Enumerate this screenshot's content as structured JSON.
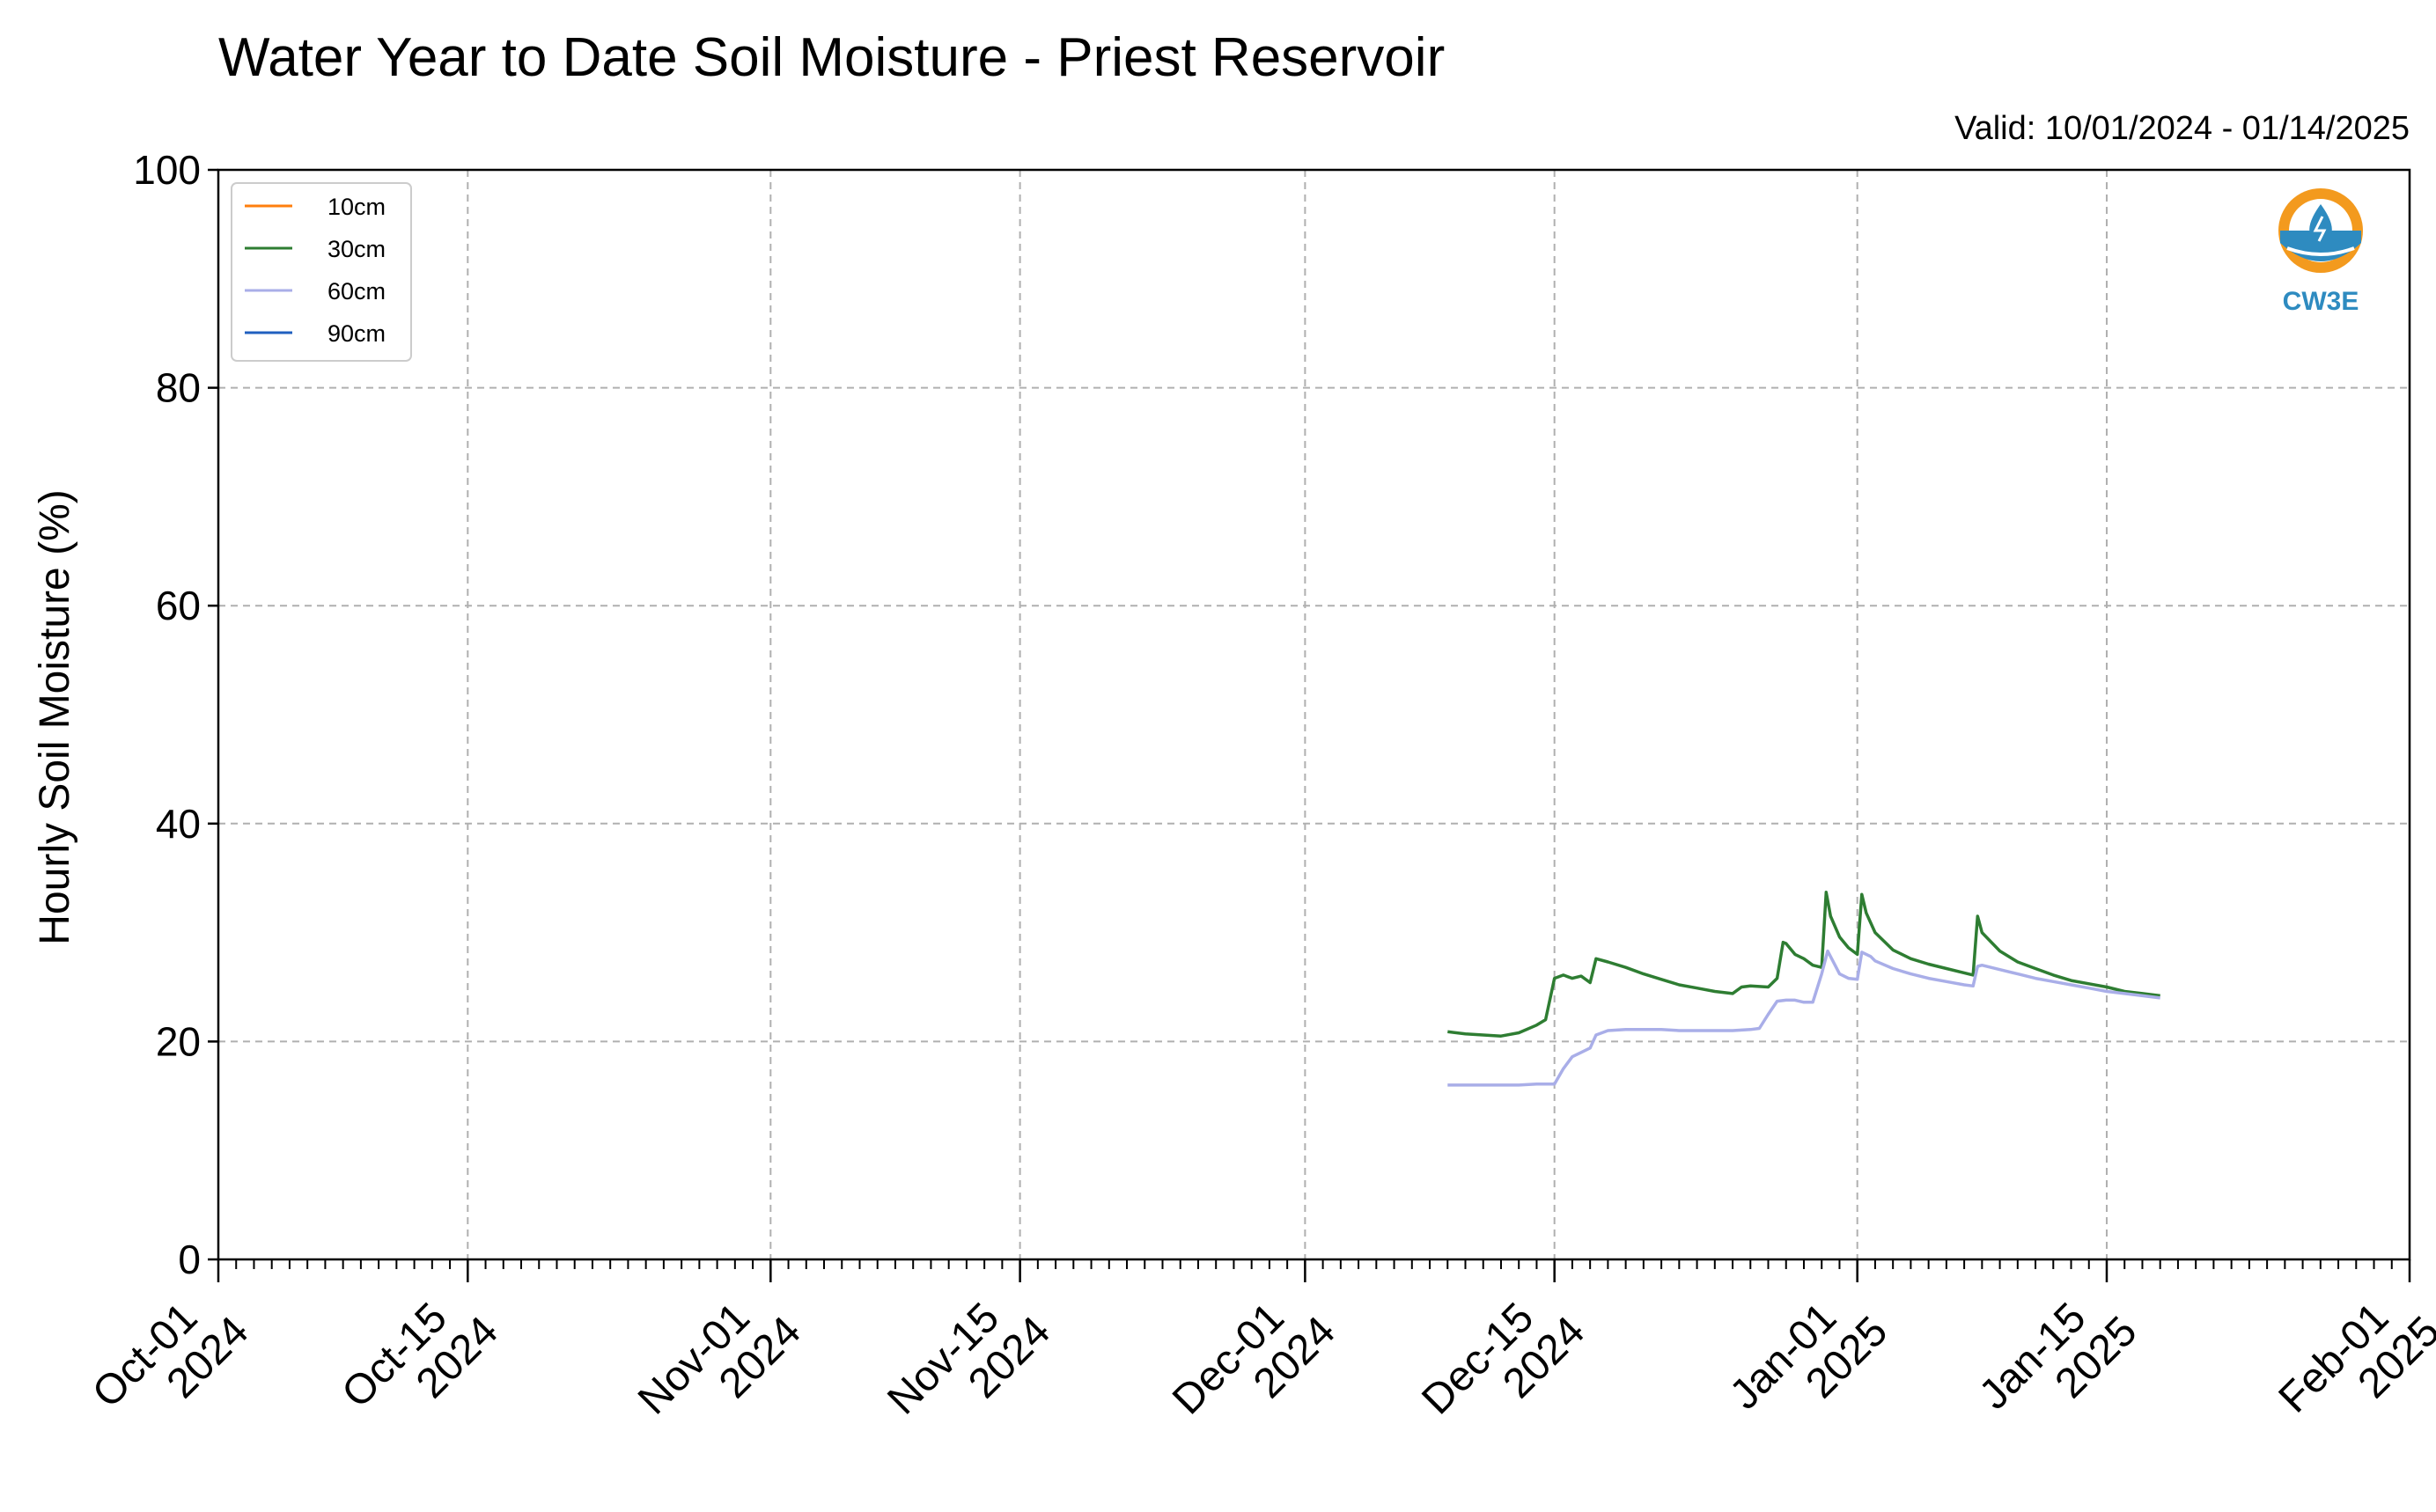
{
  "chart_data": {
    "type": "line",
    "title": "Water Year to Date Soil Moisture - Priest Reservoir",
    "subtitle": "Valid: 10/01/2024 - 01/14/2025",
    "ylabel": "Hourly Soil Moisture (%)",
    "xlabel": "",
    "ylim": [
      0,
      100
    ],
    "xlim": [
      "2024-10-01",
      "2025-02-01"
    ],
    "y_ticks": [
      "0",
      "20",
      "40",
      "60",
      "80",
      "100"
    ],
    "x_ticks": [
      {
        "date": "2024-10-01",
        "line1": "Oct-01",
        "line2": "2024"
      },
      {
        "date": "2024-10-15",
        "line1": "Oct-15",
        "line2": "2024"
      },
      {
        "date": "2024-11-01",
        "line1": "Nov-01",
        "line2": "2024"
      },
      {
        "date": "2024-11-15",
        "line1": "Nov-15",
        "line2": "2024"
      },
      {
        "date": "2024-12-01",
        "line1": "Dec-01",
        "line2": "2024"
      },
      {
        "date": "2024-12-15",
        "line1": "Dec-15",
        "line2": "2024"
      },
      {
        "date": "2025-01-01",
        "line1": "Jan-01",
        "line2": "2025"
      },
      {
        "date": "2025-01-15",
        "line1": "Jan-15",
        "line2": "2025"
      },
      {
        "date": "2025-02-01",
        "line1": "Feb-01",
        "line2": "2025"
      }
    ],
    "grid": true,
    "legend_position": "top-left",
    "series": [
      {
        "name": "10cm",
        "color": "#ff7f0e",
        "points": []
      },
      {
        "name": "30cm",
        "color": "#2e7d32",
        "points": [
          [
            "2024-12-09",
            20.9
          ],
          [
            "2024-12-10",
            20.7
          ],
          [
            "2024-12-11",
            20.6
          ],
          [
            "2024-12-12",
            20.5
          ],
          [
            "2024-12-13",
            20.8
          ],
          [
            "2024-12-14",
            21.5
          ],
          [
            "2024-12-14T12",
            22.0
          ],
          [
            "2024-12-15",
            25.8
          ],
          [
            "2024-12-15T12",
            26.1
          ],
          [
            "2024-12-16",
            25.8
          ],
          [
            "2024-12-16T12",
            26.0
          ],
          [
            "2024-12-17",
            25.4
          ],
          [
            "2024-12-17T08",
            27.6
          ],
          [
            "2024-12-18",
            27.3
          ],
          [
            "2024-12-19",
            26.8
          ],
          [
            "2024-12-20",
            26.2
          ],
          [
            "2024-12-21",
            25.7
          ],
          [
            "2024-12-22",
            25.2
          ],
          [
            "2024-12-23",
            24.9
          ],
          [
            "2024-12-24",
            24.6
          ],
          [
            "2024-12-25",
            24.4
          ],
          [
            "2024-12-25T12",
            25.0
          ],
          [
            "2024-12-26",
            25.1
          ],
          [
            "2024-12-27",
            25.0
          ],
          [
            "2024-12-27T12",
            25.8
          ],
          [
            "2024-12-27T20",
            29.1
          ],
          [
            "2024-12-28",
            29.0
          ],
          [
            "2024-12-28T12",
            28.0
          ],
          [
            "2024-12-29",
            27.6
          ],
          [
            "2024-12-29T12",
            27.0
          ],
          [
            "2024-12-30",
            26.8
          ],
          [
            "2024-12-30T06",
            33.7
          ],
          [
            "2024-12-30T12",
            31.5
          ],
          [
            "2024-12-31",
            29.6
          ],
          [
            "2024-12-31T12",
            28.6
          ],
          [
            "2025-01-01",
            28.0
          ],
          [
            "2025-01-01T06",
            33.5
          ],
          [
            "2025-01-01T12",
            31.8
          ],
          [
            "2025-01-02",
            30.0
          ],
          [
            "2025-01-03",
            28.4
          ],
          [
            "2025-01-04",
            27.6
          ],
          [
            "2025-01-05",
            27.1
          ],
          [
            "2025-01-06",
            26.7
          ],
          [
            "2025-01-07",
            26.3
          ],
          [
            "2025-01-07T12",
            26.1
          ],
          [
            "2025-01-07T18",
            31.5
          ],
          [
            "2025-01-08",
            30.0
          ],
          [
            "2025-01-09",
            28.3
          ],
          [
            "2025-01-10",
            27.3
          ],
          [
            "2025-01-11",
            26.7
          ],
          [
            "2025-01-12",
            26.1
          ],
          [
            "2025-01-13",
            25.6
          ],
          [
            "2025-01-14",
            25.3
          ],
          [
            "2025-01-15",
            25.0
          ],
          [
            "2025-01-16",
            24.6
          ],
          [
            "2025-01-17",
            24.4
          ],
          [
            "2025-01-18",
            24.2
          ]
        ]
      },
      {
        "name": "60cm",
        "color": "#a9aee8",
        "points": [
          [
            "2024-12-09",
            16.0
          ],
          [
            "2024-12-10",
            16.0
          ],
          [
            "2024-12-11",
            16.0
          ],
          [
            "2024-12-12",
            16.0
          ],
          [
            "2024-12-13",
            16.0
          ],
          [
            "2024-12-14",
            16.1
          ],
          [
            "2024-12-15",
            16.1
          ],
          [
            "2024-12-15T12",
            17.5
          ],
          [
            "2024-12-16",
            18.6
          ],
          [
            "2024-12-16T12",
            19.0
          ],
          [
            "2024-12-17",
            19.4
          ],
          [
            "2024-12-17T08",
            20.6
          ],
          [
            "2024-12-18",
            21.0
          ],
          [
            "2024-12-19",
            21.1
          ],
          [
            "2024-12-20",
            21.1
          ],
          [
            "2024-12-21",
            21.1
          ],
          [
            "2024-12-22",
            21.0
          ],
          [
            "2024-12-23",
            21.0
          ],
          [
            "2024-12-24",
            21.0
          ],
          [
            "2024-12-25",
            21.0
          ],
          [
            "2024-12-26",
            21.1
          ],
          [
            "2024-12-26T12",
            21.2
          ],
          [
            "2024-12-27",
            22.5
          ],
          [
            "2024-12-27T12",
            23.7
          ],
          [
            "2024-12-28",
            23.8
          ],
          [
            "2024-12-28T12",
            23.8
          ],
          [
            "2024-12-29",
            23.6
          ],
          [
            "2024-12-29T12",
            23.6
          ],
          [
            "2024-12-30",
            26.2
          ],
          [
            "2024-12-30T08",
            28.3
          ],
          [
            "2024-12-30T18",
            27.0
          ],
          [
            "2024-12-31",
            26.2
          ],
          [
            "2024-12-31T12",
            25.8
          ],
          [
            "2025-01-01",
            25.7
          ],
          [
            "2025-01-01T06",
            28.2
          ],
          [
            "2025-01-01T18",
            27.8
          ],
          [
            "2025-01-02",
            27.4
          ],
          [
            "2025-01-03",
            26.7
          ],
          [
            "2025-01-04",
            26.2
          ],
          [
            "2025-01-05",
            25.8
          ],
          [
            "2025-01-06",
            25.5
          ],
          [
            "2025-01-07",
            25.2
          ],
          [
            "2025-01-07T12",
            25.1
          ],
          [
            "2025-01-07T18",
            26.9
          ],
          [
            "2025-01-08",
            27.0
          ],
          [
            "2025-01-09",
            26.6
          ],
          [
            "2025-01-10",
            26.2
          ],
          [
            "2025-01-11",
            25.8
          ],
          [
            "2025-01-12",
            25.5
          ],
          [
            "2025-01-13",
            25.2
          ],
          [
            "2025-01-14",
            24.9
          ],
          [
            "2025-01-15",
            24.6
          ],
          [
            "2025-01-16",
            24.4
          ],
          [
            "2025-01-17",
            24.2
          ],
          [
            "2025-01-18",
            24.0
          ]
        ]
      },
      {
        "name": "90cm",
        "color": "#1f5fbf",
        "points": []
      }
    ]
  },
  "logo": {
    "text": "CW3E",
    "ring_color": "#f39a1e",
    "water_color": "#2e8bc0"
  }
}
